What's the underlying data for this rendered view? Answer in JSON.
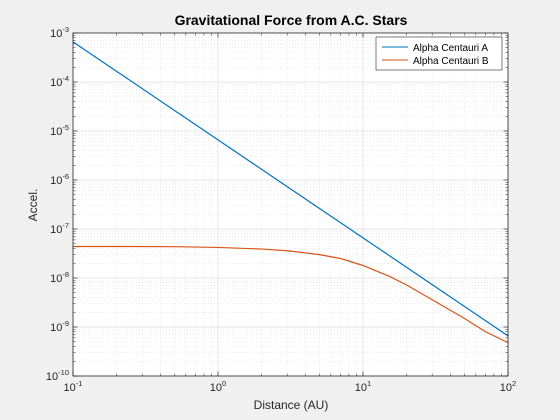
{
  "chart_data": {
    "type": "line",
    "title": "Gravitational Force from A.C. Stars",
    "xlabel": "Distance (AU)",
    "ylabel": "Accel.",
    "xscale": "log",
    "yscale": "log",
    "xlim": [
      0.1,
      100
    ],
    "ylim": [
      1e-10,
      0.001
    ],
    "x_tick_values": [
      0.1,
      1,
      10,
      100
    ],
    "x_tick_labels": [
      {
        "base": "10",
        "exp": "-1"
      },
      {
        "base": "10",
        "exp": "0"
      },
      {
        "base": "10",
        "exp": "1"
      },
      {
        "base": "10",
        "exp": "2"
      }
    ],
    "y_tick_values": [
      1e-10,
      1e-09,
      1e-08,
      1e-07,
      1e-06,
      1e-05,
      0.0001,
      0.001
    ],
    "y_tick_labels": [
      {
        "base": "10",
        "exp": "-10"
      },
      {
        "base": "10",
        "exp": "-9"
      },
      {
        "base": "10",
        "exp": "-8"
      },
      {
        "base": "10",
        "exp": "-7"
      },
      {
        "base": "10",
        "exp": "-6"
      },
      {
        "base": "10",
        "exp": "-5"
      },
      {
        "base": "10",
        "exp": "-4"
      },
      {
        "base": "10",
        "exp": "-3"
      }
    ],
    "grid": true,
    "minor_grid": true,
    "legend_position": "top-right",
    "series": [
      {
        "name": "Alpha Centauri A",
        "color": "#0072bd",
        "x": [
          0.1,
          0.2,
          0.5,
          1,
          2,
          5,
          10,
          20,
          50,
          100
        ],
        "y": [
          0.00066,
          0.000165,
          2.64e-05,
          6.6e-06,
          1.65e-06,
          2.64e-07,
          6.6e-08,
          1.65e-08,
          2.64e-09,
          6.6e-10
        ]
      },
      {
        "name": "Alpha Centauri B",
        "color": "#d95319",
        "x": [
          0.1,
          0.2,
          0.5,
          1,
          2,
          3,
          5,
          7,
          10,
          15,
          20,
          30,
          50,
          70,
          100
        ],
        "y": [
          4.4e-08,
          4.4e-08,
          4.35e-08,
          4.2e-08,
          3.9e-08,
          3.6e-08,
          3e-08,
          2.5e-08,
          1.8e-08,
          1.1e-08,
          7.2e-09,
          3.6e-09,
          1.5e-09,
          8e-10,
          4.8e-10
        ]
      }
    ]
  }
}
